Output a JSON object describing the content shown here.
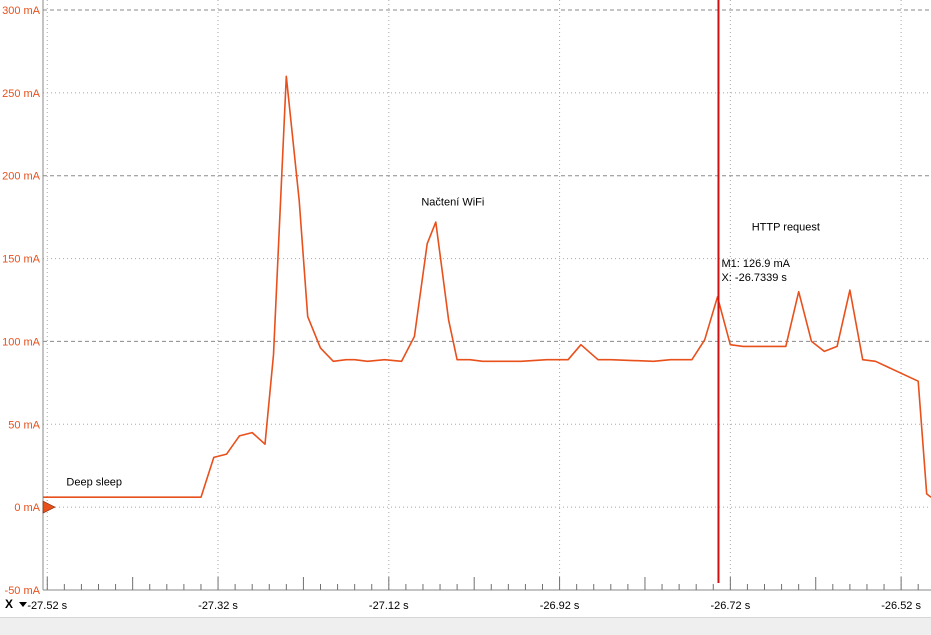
{
  "chart_data": {
    "type": "line",
    "title": "",
    "xlabel": "",
    "ylabel": "",
    "xlim": [
      -27.525,
      -26.485
    ],
    "ylim": [
      -50,
      300
    ],
    "grid": true,
    "y_ticks": [
      -50,
      0,
      50,
      100,
      150,
      200,
      250,
      300
    ],
    "y_tick_labels": [
      "-50 mA",
      "0 mA",
      "50 mA",
      "100 mA",
      "150 mA",
      "200 mA",
      "250 mA",
      "300 mA"
    ],
    "x_ticks": [
      -27.52,
      -27.32,
      -27.12,
      -26.92,
      -26.72,
      -26.52
    ],
    "x_tick_labels": [
      "-27.52 s",
      "-27.32 s",
      "-27.12 s",
      "-26.92 s",
      "-26.72 s",
      "-26.52 s"
    ],
    "series": [
      {
        "color": "#e8501c",
        "x": [
          -27.525,
          -27.34,
          -27.325,
          -27.31,
          -27.295,
          -27.28,
          -27.265,
          -27.255,
          -27.24,
          -27.225,
          -27.215,
          -27.2,
          -27.185,
          -27.17,
          -27.16,
          -27.145,
          -27.125,
          -27.105,
          -27.09,
          -27.075,
          -27.065,
          -27.05,
          -27.04,
          -27.025,
          -27.01,
          -26.965,
          -26.935,
          -26.91,
          -26.895,
          -26.875,
          -26.86,
          -26.81,
          -26.79,
          -26.765,
          -26.75,
          -26.735,
          -26.72,
          -26.705,
          -26.655,
          -26.64,
          -26.625,
          -26.61,
          -26.595,
          -26.58,
          -26.565,
          -26.55,
          -26.5,
          -26.49,
          -26.485
        ],
        "y": [
          6,
          6,
          30,
          32,
          43,
          45,
          38,
          92,
          260,
          185,
          115,
          96,
          88,
          89,
          89,
          88,
          89,
          88,
          103,
          159,
          172,
          113,
          89,
          89,
          88,
          88,
          89,
          89,
          98,
          89,
          89,
          88,
          89,
          89,
          101,
          126.9,
          98,
          97,
          97,
          130,
          100,
          94,
          97,
          131,
          89,
          88,
          76,
          8,
          6
        ]
      }
    ],
    "annotations": [
      {
        "text": "Deep sleep",
        "x": -27.465,
        "y": 13
      },
      {
        "text": "Načtení WiFi",
        "x": -27.045,
        "y": 182
      },
      {
        "text": "HTTP request",
        "x": -26.655,
        "y": 167
      }
    ],
    "marker": {
      "name": "M1",
      "x": -26.7339,
      "y": 126.9,
      "label_line1": "M1: 126.9 mA",
      "label_line2": "X: -26.7339 s",
      "color": "#d01010"
    },
    "zero_marker_color": "#e8501c"
  },
  "toolbar": {
    "axis_selector_label": "X"
  }
}
